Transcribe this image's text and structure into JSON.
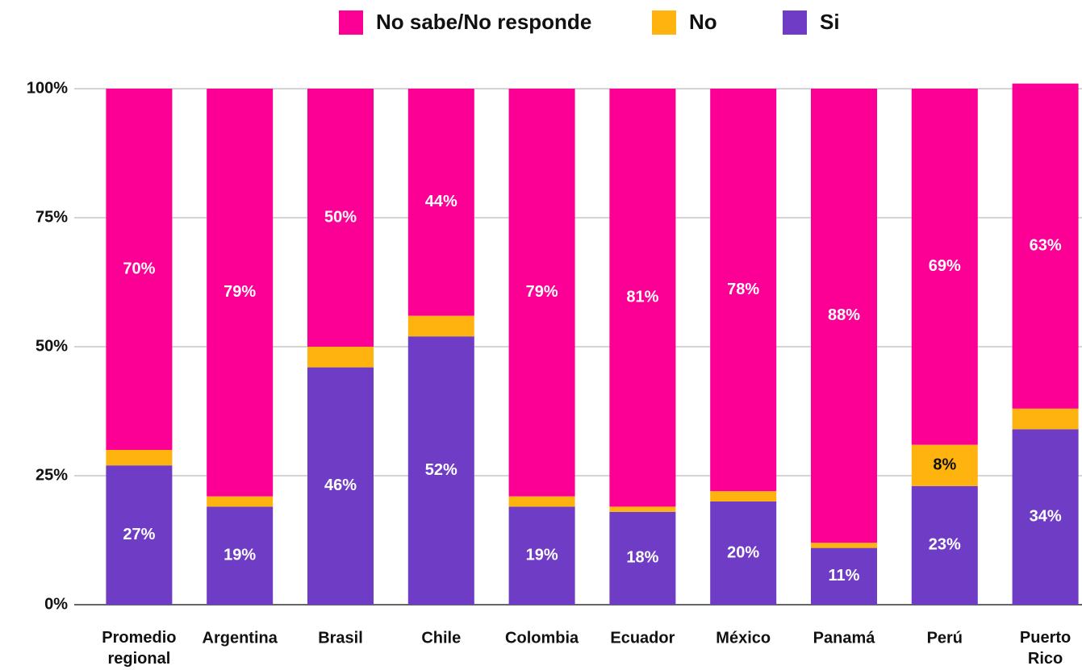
{
  "chart_data": {
    "type": "stacked_bar",
    "categories": [
      "Promedio regional",
      "Argentina",
      "Brasil",
      "Chile",
      "Colombia",
      "Ecuador",
      "México",
      "Panamá",
      "Perú",
      "Puerto Rico"
    ],
    "series": [
      {
        "name": "No sabe/No responde",
        "color": "#fc0096",
        "values": [
          70,
          79,
          50,
          44,
          79,
          81,
          78,
          88,
          69,
          63
        ],
        "value_labels": [
          "70%",
          "79%",
          "50%",
          "44%",
          "79%",
          "81%",
          "78%",
          "88%",
          "69%",
          "63%"
        ]
      },
      {
        "name": "No",
        "color": "#ffb30f",
        "values": [
          3,
          2,
          4,
          4,
          2,
          1,
          2,
          1,
          8,
          4
        ],
        "value_labels": [
          "3%",
          "2%",
          "4%",
          "4%",
          "2%",
          "1%",
          "2%",
          "1%",
          "8%",
          "4%"
        ]
      },
      {
        "name": "Si",
        "color": "#6f3cc6",
        "values": [
          27,
          19,
          46,
          52,
          19,
          18,
          20,
          11,
          23,
          34
        ],
        "value_labels": [
          "27%",
          "19%",
          "46%",
          "52%",
          "19%",
          "18%",
          "20%",
          "11%",
          "23%",
          "34%"
        ]
      }
    ],
    "ylim": [
      0,
      100
    ],
    "yticks": [
      {
        "value": 0,
        "label": "0%"
      },
      {
        "value": 25,
        "label": "25%"
      },
      {
        "value": 50,
        "label": "50%"
      },
      {
        "value": 75,
        "label": "75%"
      },
      {
        "value": 100,
        "label": "100%"
      }
    ],
    "grid": true
  }
}
